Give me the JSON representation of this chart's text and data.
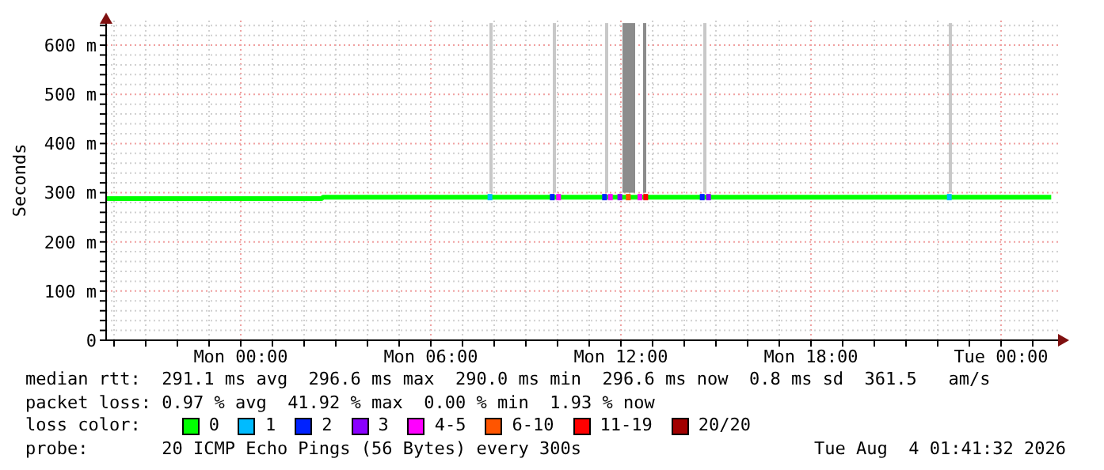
{
  "chart_data": {
    "type": "line",
    "ylabel": "Seconds",
    "legend_title": "loss color:",
    "legend": "bottom",
    "grid": true,
    "marker": "none",
    "line_style": "solid",
    "xlim": [
      "2026-08-02T19:45",
      "2026-08-04T01:48"
    ],
    "xticks": [
      {
        "value": "2026-08-02T20:00",
        "label": null
      },
      {
        "value": "2026-08-02T21:00",
        "label": null
      },
      {
        "value": "2026-08-02T22:00",
        "label": null
      },
      {
        "value": "2026-08-02T23:00",
        "label": null
      },
      {
        "value": "2026-08-03T00:00",
        "label": "Mon 00:00"
      },
      {
        "value": "2026-08-03T01:00",
        "label": null
      },
      {
        "value": "2026-08-03T02:00",
        "label": null
      },
      {
        "value": "2026-08-03T03:00",
        "label": null
      },
      {
        "value": "2026-08-03T04:00",
        "label": null
      },
      {
        "value": "2026-08-03T05:00",
        "label": null
      },
      {
        "value": "2026-08-03T06:00",
        "label": "Mon 06:00"
      },
      {
        "value": "2026-08-03T07:00",
        "label": null
      },
      {
        "value": "2026-08-03T08:00",
        "label": null
      },
      {
        "value": "2026-08-03T09:00",
        "label": null
      },
      {
        "value": "2026-08-03T10:00",
        "label": null
      },
      {
        "value": "2026-08-03T11:00",
        "label": null
      },
      {
        "value": "2026-08-03T12:00",
        "label": "Mon 12:00"
      },
      {
        "value": "2026-08-03T13:00",
        "label": null
      },
      {
        "value": "2026-08-03T14:00",
        "label": null
      },
      {
        "value": "2026-08-03T15:00",
        "label": null
      },
      {
        "value": "2026-08-03T16:00",
        "label": null
      },
      {
        "value": "2026-08-03T17:00",
        "label": null
      },
      {
        "value": "2026-08-03T18:00",
        "label": "Mon 18:00"
      },
      {
        "value": "2026-08-03T19:00",
        "label": null
      },
      {
        "value": "2026-08-03T20:00",
        "label": null
      },
      {
        "value": "2026-08-03T21:00",
        "label": null
      },
      {
        "value": "2026-08-03T22:00",
        "label": null
      },
      {
        "value": "2026-08-03T23:00",
        "label": null
      },
      {
        "value": "2026-08-04T00:00",
        "label": "Tue 00:00"
      },
      {
        "value": "2026-08-04T01:00",
        "label": null
      }
    ],
    "ylim": [
      0,
      650
    ],
    "yticks": [
      {
        "value": 0,
        "label": "0"
      },
      {
        "value": 20,
        "label": null
      },
      {
        "value": 40,
        "label": null
      },
      {
        "value": 60,
        "label": null
      },
      {
        "value": 80,
        "label": null
      },
      {
        "value": 100,
        "label": "100 m"
      },
      {
        "value": 120,
        "label": null
      },
      {
        "value": 140,
        "label": null
      },
      {
        "value": 160,
        "label": null
      },
      {
        "value": 180,
        "label": null
      },
      {
        "value": 200,
        "label": "200 m"
      },
      {
        "value": 220,
        "label": null
      },
      {
        "value": 240,
        "label": null
      },
      {
        "value": 260,
        "label": null
      },
      {
        "value": 280,
        "label": null
      },
      {
        "value": 300,
        "label": "300 m"
      },
      {
        "value": 320,
        "label": null
      },
      {
        "value": 340,
        "label": null
      },
      {
        "value": 360,
        "label": null
      },
      {
        "value": 380,
        "label": null
      },
      {
        "value": 400,
        "label": "400 m"
      },
      {
        "value": 420,
        "label": null
      },
      {
        "value": 440,
        "label": null
      },
      {
        "value": 460,
        "label": null
      },
      {
        "value": 480,
        "label": null
      },
      {
        "value": 500,
        "label": "500 m"
      },
      {
        "value": 520,
        "label": null
      },
      {
        "value": 540,
        "label": null
      },
      {
        "value": 560,
        "label": null
      },
      {
        "value": 580,
        "label": null
      },
      {
        "value": 600,
        "label": "600 m"
      },
      {
        "value": 620,
        "label": null
      },
      {
        "value": 640,
        "label": null
      }
    ],
    "series": [
      {
        "type": "line",
        "color": "#c8c8c8",
        "x": [
          "2026-08-03T07:54",
          "2026-08-03T07:54"
        ],
        "values": [
          300,
          645
        ]
      },
      {
        "type": "line",
        "color": "#c8c8c8",
        "x": [
          "2026-08-03T09:54",
          "2026-08-03T09:54"
        ],
        "values": [
          300,
          645
        ]
      },
      {
        "type": "line",
        "color": "#c8c8c8",
        "x": [
          "2026-08-03T11:33",
          "2026-08-03T11:33"
        ],
        "values": [
          300,
          645
        ]
      },
      {
        "type": "line",
        "color": "#8c8c8c",
        "x": [
          "2026-08-03T12:06",
          "2026-08-03T12:06"
        ],
        "values": [
          300,
          645
        ]
      },
      {
        "type": "line",
        "color": "#8c8c8c",
        "x": [
          "2026-08-03T12:12",
          "2026-08-03T12:12"
        ],
        "values": [
          300,
          645
        ]
      },
      {
        "type": "line",
        "color": "#8c8c8c",
        "x": [
          "2026-08-03T12:18",
          "2026-08-03T12:18"
        ],
        "values": [
          300,
          645
        ]
      },
      {
        "type": "line",
        "color": "#8c8c8c",
        "x": [
          "2026-08-03T12:24",
          "2026-08-03T12:24"
        ],
        "values": [
          300,
          645
        ]
      },
      {
        "type": "line",
        "color": "#8c8c8c",
        "x": [
          "2026-08-03T12:45",
          "2026-08-03T12:45"
        ],
        "values": [
          300,
          645
        ]
      },
      {
        "type": "line",
        "color": "#c8c8c8",
        "x": [
          "2026-08-03T14:39",
          "2026-08-03T14:39"
        ],
        "values": [
          300,
          645
        ]
      },
      {
        "type": "line",
        "color": "#c8c8c8",
        "x": [
          "2026-08-03T22:24",
          "2026-08-03T22:24"
        ],
        "values": [
          300,
          645
        ]
      },
      {
        "name": "0",
        "color": "#00ff00",
        "x": [
          "2026-08-02T19:45",
          "2026-08-03T02:33",
          "2026-08-03T02:36",
          "2026-08-04T01:35"
        ],
        "values": [
          288,
          288,
          291,
          291
        ]
      },
      {
        "name": "1",
        "type": "scatter",
        "marker": "square",
        "color": "#00bbff",
        "x": [
          "2026-08-03T07:52",
          "2026-08-03T22:22"
        ],
        "values": [
          291,
          291
        ]
      },
      {
        "name": "2",
        "type": "scatter",
        "marker": "square",
        "color": "#0022ff",
        "x": [
          "2026-08-03T09:50",
          "2026-08-03T11:29",
          "2026-08-03T14:34"
        ],
        "values": [
          291,
          291,
          291
        ]
      },
      {
        "name": "3",
        "type": "scatter",
        "marker": "square",
        "color": "#8a00ff",
        "x": [
          "2026-08-03T11:58",
          "2026-08-03T14:46"
        ],
        "values": [
          291,
          291
        ]
      },
      {
        "name": "4-5",
        "type": "scatter",
        "marker": "square",
        "color": "#ff00ff",
        "x": [
          "2026-08-03T10:02",
          "2026-08-03T11:40",
          "2026-08-03T12:36"
        ],
        "values": [
          291,
          291,
          291
        ]
      },
      {
        "name": "6-10",
        "type": "scatter",
        "marker": "square",
        "color": "#ff5500",
        "x": [
          "2026-08-03T12:14"
        ],
        "values": [
          291
        ]
      },
      {
        "name": "11-19",
        "type": "scatter",
        "marker": "square",
        "color": "#ff0000",
        "x": [
          "2026-08-03T12:47"
        ],
        "values": [
          291
        ]
      },
      {
        "name": "20/20",
        "color": "#a10000"
      }
    ],
    "annotations": [
      "median rtt:  291.1 ms avg  296.6 ms max  290.0 ms min  296.6 ms now  0.8 ms sd  361.5   am/s",
      "packet loss: 0.97 % avg  41.92 % max  0.00 % min  1.93 % now",
      "probe:       20 ICMP Echo Pings (56 Bytes) every 300s",
      "Tue Aug  4 01:41:32 2026"
    ]
  }
}
